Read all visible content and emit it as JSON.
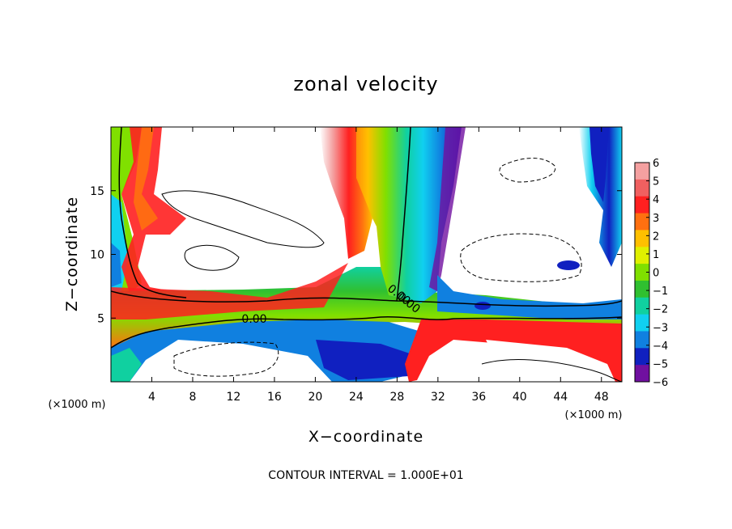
{
  "chart_data": {
    "type": "heatmap",
    "title": "zonal velocity",
    "xlabel": "X−coordinate",
    "ylabel": "Z−coordinate",
    "x_unit_label_left": "(×1000 m)",
    "x_unit_label_right": "(×1000 m)",
    "footer": "CONTOUR INTERVAL = 1.000E+01",
    "xlim": [
      0,
      50
    ],
    "ylim": [
      0,
      20
    ],
    "x_ticks": [
      "4",
      "8",
      "12",
      "16",
      "20",
      "24",
      "28",
      "32",
      "36",
      "40",
      "44",
      "48"
    ],
    "y_ticks": [
      "5",
      "10",
      "15"
    ],
    "colorbar": {
      "levels": [
        "6",
        "5",
        "4",
        "3",
        "2",
        "1",
        "0",
        "−1",
        "−2",
        "−3",
        "−4",
        "−5",
        "−6"
      ],
      "colors": [
        "#f4a0a0",
        "#f06060",
        "#ff2020",
        "#ff7010",
        "#ffc000",
        "#e0f000",
        "#80e000",
        "#30c030",
        "#10d0a0",
        "#10d0f0",
        "#1080e0",
        "#1020c0",
        "#7010a0"
      ]
    },
    "contour_labels": [
      "0.00",
      "0.00",
      "0.00"
    ]
  }
}
